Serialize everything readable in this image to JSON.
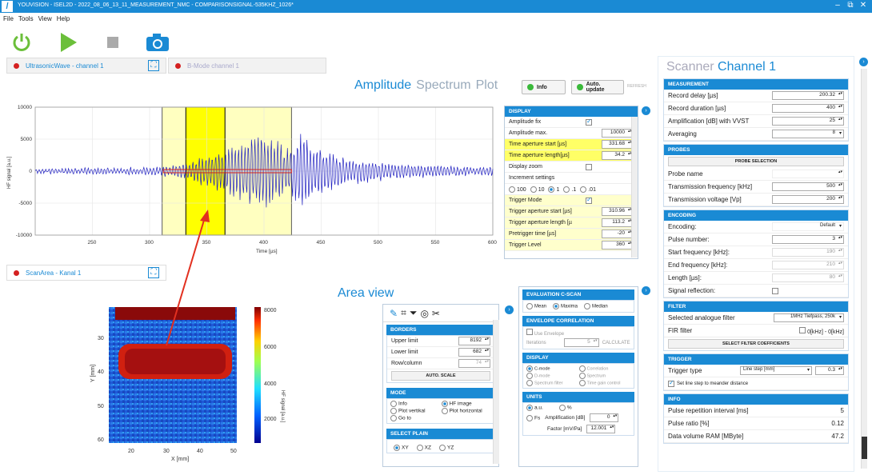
{
  "window": {
    "title": "YOUVISION - ISEL2D - 2022_08_06_13_11_MEASUREMENT_NMC - COMPARISONSIGNAL-535KHZ_1026*",
    "min": "–",
    "max": "⧉",
    "close": "✕"
  },
  "menu": [
    "File",
    "Tools",
    "View",
    "Help"
  ],
  "toolbar": {
    "power": "power-icon",
    "play": "play-icon",
    "stop": "stop-icon",
    "camera": "camera-icon"
  },
  "tabs_top": [
    {
      "label": "UltrasonicWave - channel 1",
      "active": true
    },
    {
      "label": "B-Mode channel 1",
      "active": false
    }
  ],
  "amplitude_header": {
    "w1": "Amplitude",
    "w2": "Spectrum",
    "w3": "Plot",
    "info": "Info",
    "auto": "Auto. update",
    "refresh": "REFRESH"
  },
  "chart_data": {
    "type": "line",
    "xlabel": "Time [µs]",
    "ylabel": "HF signal [a.u.]",
    "xlim": [
      200,
      600
    ],
    "ylim": [
      -10000,
      10000
    ],
    "xticks": [
      250,
      300,
      350,
      400,
      450,
      500,
      550,
      600
    ],
    "yticks": [
      10000,
      5000,
      0,
      -5000,
      -10000
    ],
    "ytick_labels": [
      "10000",
      "5000",
      "0",
      "-5000",
      "-10000"
    ],
    "series": [
      {
        "envelope": [
          [
            200,
            400
          ],
          [
            270,
            500
          ],
          [
            300,
            600
          ],
          [
            320,
            900
          ],
          [
            335,
            1500
          ],
          [
            350,
            2500
          ],
          [
            365,
            3500
          ],
          [
            380,
            5000
          ],
          [
            395,
            6500
          ],
          [
            410,
            5500
          ],
          [
            420,
            3500
          ],
          [
            432,
            6000
          ],
          [
            445,
            4500
          ],
          [
            460,
            3000
          ],
          [
            480,
            2000
          ],
          [
            500,
            1500
          ],
          [
            530,
            1000
          ],
          [
            560,
            800
          ],
          [
            600,
            600
          ]
        ],
        "color": "#2020c0"
      }
    ],
    "window_outer": [
      311,
      424
    ],
    "window_inner": [
      331.68,
      365.88
    ],
    "trigger_line": {
      "y": 0,
      "from": 312,
      "to": 424,
      "color": "#d42020"
    }
  },
  "display_panel": {
    "title": "DISPLAY",
    "rows": [
      {
        "label": "Amplitude fix",
        "check": true
      },
      {
        "label": "Amplitude max.",
        "value": "10000"
      },
      {
        "label": "Time aperture start [µs]",
        "value": "331.68",
        "hl": true
      },
      {
        "label": "Time aperture length[µs]",
        "value": "34.2",
        "hl": true
      },
      {
        "label": "Display zoom",
        "check": false
      },
      {
        "label": "Increment settings"
      }
    ],
    "increments": [
      "100",
      "10",
      "1",
      ".1",
      ".01"
    ],
    "increment_selected": 2,
    "trigger_rows": [
      {
        "label": "Trigger Mode",
        "check": true
      },
      {
        "label": "Trigger aperture start [µs]",
        "value": "310.96"
      },
      {
        "label": "Trigger aperture length [µ",
        "value": "113.2"
      },
      {
        "label": "Pretrigger time [µs]",
        "value": "-20"
      },
      {
        "label": "Trigger Level",
        "value": "360"
      }
    ]
  },
  "scan_tab": {
    "label": "ScanArea - Kanal 1"
  },
  "area_header": "Area view",
  "heatmap": {
    "xlabel": "X [mm]",
    "ylabel": "Y [mm]",
    "colorbar_label": "HF signal [a.u.]",
    "xticks": [
      "20",
      "30",
      "40",
      "50"
    ],
    "yticks": [
      "30",
      "40",
      "50",
      "60"
    ],
    "cbar_ticks": [
      "8000",
      "6000",
      "4000",
      "2000"
    ]
  },
  "area_panel": {
    "borders_title": "BORDERS",
    "upper_label": "Upper limit",
    "upper": "8192",
    "lower_label": "Lower limit",
    "lower": "682",
    "rowcol_label": "Row/column",
    "rowcol": "74",
    "auto_scale": "AUTO. SCALE",
    "mode_title": "MODE",
    "modes": [
      {
        "label": "Info",
        "on": false
      },
      {
        "label": "HF image",
        "on": true
      },
      {
        "label": "Plot vertikal",
        "on": false
      },
      {
        "label": "Plot horizontal",
        "on": false
      },
      {
        "label": "Go to",
        "on": false
      }
    ],
    "plain_title": "SELECT PLAIN",
    "plains": [
      {
        "label": "XY",
        "on": true
      },
      {
        "label": "XZ",
        "on": false
      },
      {
        "label": "YZ",
        "on": false
      }
    ]
  },
  "eval_panel": {
    "cscan_title": "EVALUATION C-SCAN",
    "cscan": [
      {
        "label": "Mean",
        "on": false
      },
      {
        "label": "Maxima",
        "on": true
      },
      {
        "label": "Median",
        "on": false
      }
    ],
    "env_title": "ENVELOPE CORRELATION",
    "use_env": "Use Envelope",
    "iter_label": "Iterations",
    "iter": "5",
    "calc": "CALCULATE",
    "display_title": "DISPLAY",
    "display": [
      {
        "label": "C-mode",
        "on": true
      },
      {
        "label": "Correlation",
        "on": false
      },
      {
        "label": "D-mode",
        "on": false
      },
      {
        "label": "Spectrum",
        "on": false
      },
      {
        "label": "Spectrum filter",
        "on": false
      },
      {
        "label": "Time gain control",
        "on": false
      }
    ],
    "units_title": "UNITS",
    "units": [
      {
        "label": "a.u.",
        "on": true
      },
      {
        "label": "%",
        "on": false
      }
    ],
    "fs": "Fs",
    "amp_label": "Amplification [dB]",
    "amp": "0",
    "factor_label": "Factor [mV/Pa]",
    "factor": "12.001"
  },
  "scanner": {
    "title1": "Scanner",
    "title2": "Channel 1",
    "measurement": {
      "title": "MEASUREMENT",
      "rows": [
        {
          "label": "Record delay [µs]",
          "value": "200.32"
        },
        {
          "label": "Record duration [µs]",
          "value": "400"
        },
        {
          "label": "Amplification [dB] with VVST",
          "value": "25"
        },
        {
          "label": "Averaging",
          "value": "8"
        }
      ]
    },
    "probes": {
      "title": "PROBES",
      "button": "PROBE SELECTION",
      "rows": [
        {
          "label": "Probe name",
          "value": ""
        },
        {
          "label": "Transmission frequency [kHz]",
          "value": "500"
        },
        {
          "label": "Transmission voltage [Vp]",
          "value": "200"
        }
      ]
    },
    "encoding": {
      "title": "ENCODING",
      "rows": [
        {
          "label": "Encoding:",
          "value": "Default"
        },
        {
          "label": "Pulse number:",
          "value": "3"
        },
        {
          "label": "Start frequency [kHz]:",
          "value": "190"
        },
        {
          "label": "End frequency [kHz]:",
          "value": "210"
        },
        {
          "label": "Length [µs]:",
          "value": "80"
        },
        {
          "label": "Signal reflection:",
          "value": ""
        }
      ]
    },
    "filter": {
      "title": "FILTER",
      "sel_label": "Selected analogue filter",
      "sel": "1MHz Tiefpass, 250k",
      "fir_label": "FIR filter",
      "fir": "0[kHz] - 0[kHz]",
      "button": "SELECT FILTER COEFFICIENTS"
    },
    "trigger": {
      "title": "TRIGGER",
      "type_label": "Trigger type",
      "type": "Line step [mm]",
      "type_val": "0.3",
      "meander": "Set line step to meander distance"
    },
    "info": {
      "title": "INFO",
      "rows": [
        {
          "label": "Pulse repetition interval [ms]",
          "value": "5"
        },
        {
          "label": "Pulse ratio [%]",
          "value": "0.12"
        },
        {
          "label": "Data volume RAM [MByte]",
          "value": "47.2"
        }
      ]
    }
  },
  "colors": {
    "accent": "#1a8ad4",
    "highlight": "#ffff00",
    "signal": "#2020c0"
  }
}
